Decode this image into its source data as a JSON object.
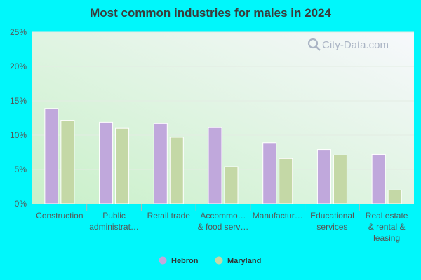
{
  "colors": {
    "page_background": "#00f7fb",
    "plot_gradient_start": "#c9f0c9",
    "plot_gradient_end": "#f7f8fc"
  },
  "watermark": {
    "text": "City-Data.com",
    "icon": "search-magnifier-icon"
  },
  "chart_data": {
    "type": "bar",
    "title": "Most common industries for males in 2024",
    "xlabel": "",
    "ylabel": "",
    "ylim": [
      0,
      25
    ],
    "yticks": [
      "0%",
      "5%",
      "10%",
      "15%",
      "20%",
      "25%"
    ],
    "grid": true,
    "legend_position": "bottom",
    "categories": [
      [
        "Construction"
      ],
      [
        "Public",
        "administrat…"
      ],
      [
        "Retail trade"
      ],
      [
        "Accommo…",
        "& food serv…"
      ],
      [
        "Manufactur…"
      ],
      [
        "Educational",
        "services"
      ],
      [
        "Real estate",
        "& rental &",
        "leasing"
      ]
    ],
    "series": [
      {
        "name": "Hebron",
        "color": "#c0a8dc",
        "values": [
          13.9,
          11.9,
          11.7,
          11.1,
          8.9,
          7.9,
          7.2
        ]
      },
      {
        "name": "Maryland",
        "color": "#c4d8a6",
        "values": [
          12.1,
          11.0,
          9.7,
          5.4,
          6.6,
          7.1,
          2.0
        ]
      }
    ]
  }
}
